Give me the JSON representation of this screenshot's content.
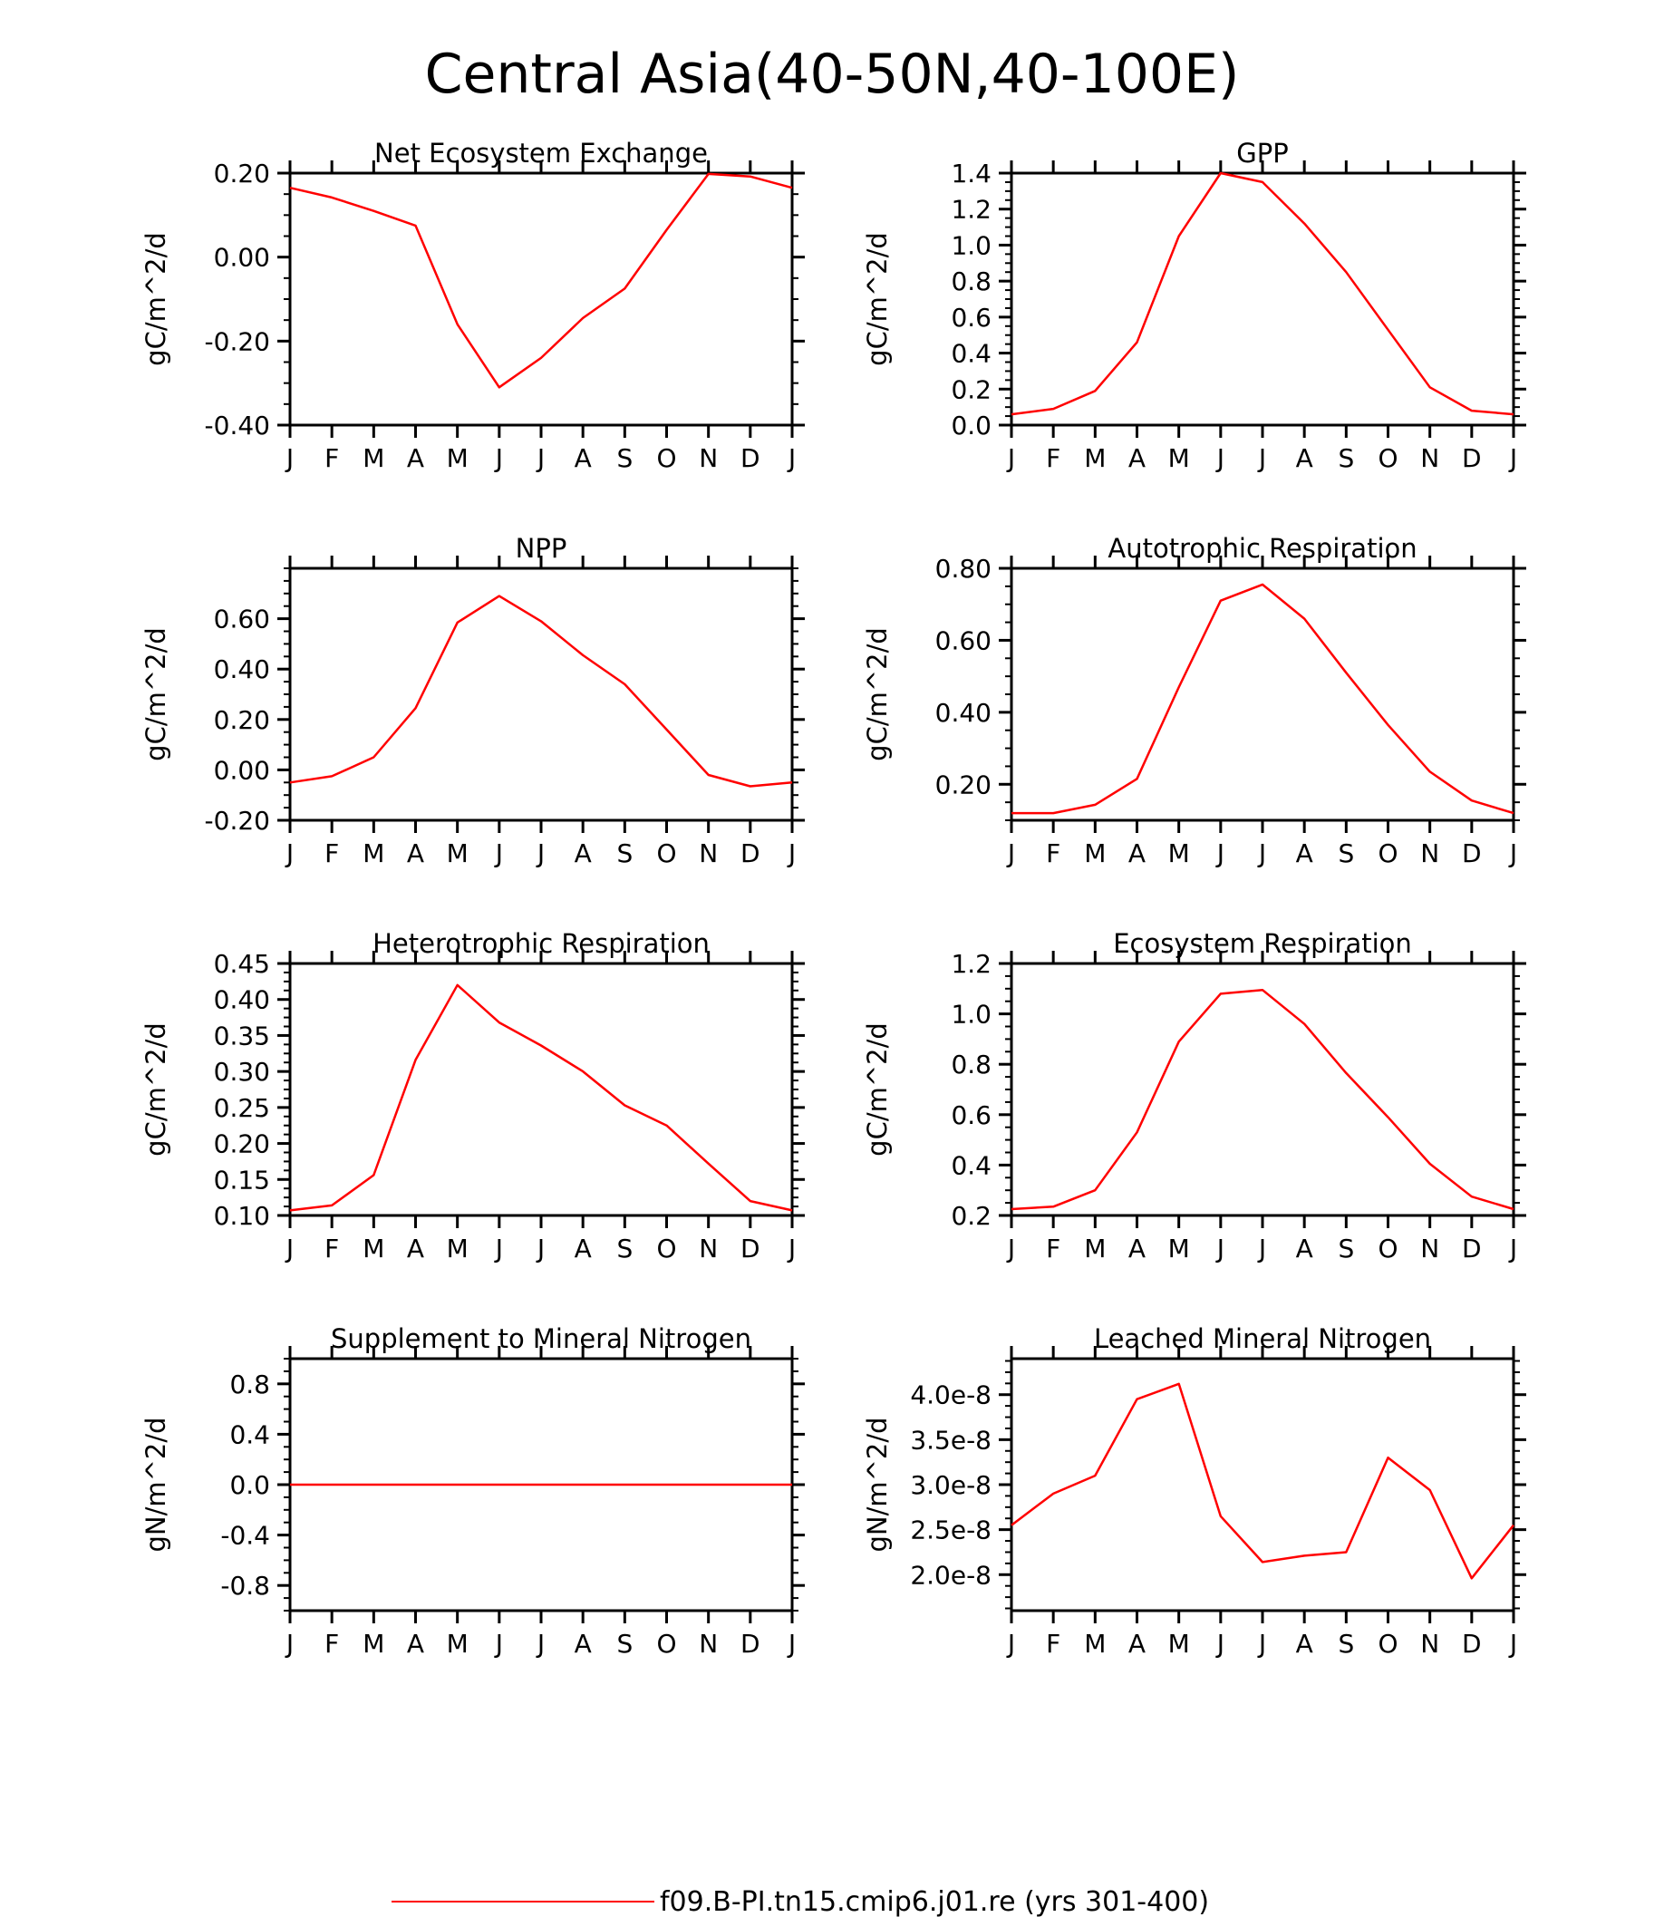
{
  "figure": {
    "title": "Central Asia(40-50N,40-100E)",
    "legend": {
      "label": "f09.B-PI.tn15.cmip6.j01.re (yrs 301-400)",
      "color": "#ff0000",
      "placement": "bottom-center"
    },
    "line_color": "#ff0000"
  },
  "chart_data": [
    {
      "type": "line",
      "title": "Net Ecosystem Exchange",
      "ylabel": "gC/m^2/d",
      "x": [
        "J",
        "F",
        "M",
        "A",
        "M",
        "J",
        "J",
        "A",
        "S",
        "O",
        "N",
        "D",
        "J"
      ],
      "ylim": [
        -0.4,
        0.2
      ],
      "yticks": [
        -0.4,
        -0.2,
        0.0,
        0.2
      ],
      "ytick_labels": [
        "-0.40",
        "-0.20",
        "0.00",
        "0.20"
      ],
      "series": [
        {
          "values": [
            0.165,
            0.142,
            0.11,
            0.075,
            -0.16,
            -0.31,
            -0.24,
            -0.145,
            -0.075,
            0.065,
            0.198,
            0.192,
            0.165
          ]
        }
      ]
    },
    {
      "type": "line",
      "title": "GPP",
      "ylabel": "gC/m^2/d",
      "x": [
        "J",
        "F",
        "M",
        "A",
        "M",
        "J",
        "J",
        "A",
        "S",
        "O",
        "N",
        "D",
        "J"
      ],
      "ylim": [
        0.0,
        1.4
      ],
      "yticks": [
        0.0,
        0.2,
        0.4,
        0.6,
        0.8,
        1.0,
        1.2,
        1.4
      ],
      "ytick_labels": [
        "0.0",
        "0.2",
        "0.4",
        "0.6",
        "0.8",
        "1.0",
        "1.2",
        "1.4"
      ],
      "series": [
        {
          "values": [
            0.06,
            0.09,
            0.19,
            0.46,
            1.05,
            1.4,
            1.35,
            1.12,
            0.85,
            0.53,
            0.21,
            0.08,
            0.06
          ]
        }
      ]
    },
    {
      "type": "line",
      "title": "NPP",
      "ylabel": "gC/m^2/d",
      "x": [
        "J",
        "F",
        "M",
        "A",
        "M",
        "J",
        "J",
        "A",
        "S",
        "O",
        "N",
        "D",
        "J"
      ],
      "ylim": [
        -0.2,
        0.8
      ],
      "yticks": [
        -0.2,
        0.0,
        0.2,
        0.4,
        0.6
      ],
      "ytick_labels": [
        "-0.20",
        "0.00",
        "0.20",
        "0.40",
        "0.60"
      ],
      "series": [
        {
          "values": [
            -0.05,
            -0.025,
            0.05,
            0.245,
            0.585,
            0.69,
            0.59,
            0.455,
            0.34,
            0.16,
            -0.02,
            -0.065,
            -0.05
          ]
        }
      ]
    },
    {
      "type": "line",
      "title": "Autotrophic Respiration",
      "ylabel": "gC/m^2/d",
      "x": [
        "J",
        "F",
        "M",
        "A",
        "M",
        "J",
        "J",
        "A",
        "S",
        "O",
        "N",
        "D",
        "J"
      ],
      "ylim": [
        0.1,
        0.8
      ],
      "yticks": [
        0.2,
        0.4,
        0.6,
        0.8
      ],
      "ytick_labels": [
        "0.20",
        "0.40",
        "0.60",
        "0.80"
      ],
      "series": [
        {
          "values": [
            0.12,
            0.12,
            0.143,
            0.215,
            0.47,
            0.71,
            0.755,
            0.66,
            0.51,
            0.365,
            0.235,
            0.155,
            0.12
          ]
        }
      ]
    },
    {
      "type": "line",
      "title": "Heterotrophic Respiration",
      "ylabel": "gC/m^2/d",
      "x": [
        "J",
        "F",
        "M",
        "A",
        "M",
        "J",
        "J",
        "A",
        "S",
        "O",
        "N",
        "D",
        "J"
      ],
      "ylim": [
        0.1,
        0.45
      ],
      "yticks": [
        0.1,
        0.15,
        0.2,
        0.25,
        0.3,
        0.35,
        0.4,
        0.45
      ],
      "ytick_labels": [
        "0.10",
        "0.15",
        "0.20",
        "0.25",
        "0.30",
        "0.35",
        "0.40",
        "0.45"
      ],
      "series": [
        {
          "values": [
            0.107,
            0.114,
            0.156,
            0.316,
            0.42,
            0.368,
            0.336,
            0.3,
            0.253,
            0.225,
            0.172,
            0.12,
            0.107
          ]
        }
      ]
    },
    {
      "type": "line",
      "title": "Ecosystem Respiration",
      "ylabel": "gC/m^2/d",
      "x": [
        "J",
        "F",
        "M",
        "A",
        "M",
        "J",
        "J",
        "A",
        "S",
        "O",
        "N",
        "D",
        "J"
      ],
      "ylim": [
        0.2,
        1.2
      ],
      "yticks": [
        0.2,
        0.4,
        0.6,
        0.8,
        1.0,
        1.2
      ],
      "ytick_labels": [
        "0.2",
        "0.4",
        "0.6",
        "0.8",
        "1.0",
        "1.2"
      ],
      "series": [
        {
          "values": [
            0.225,
            0.235,
            0.3,
            0.53,
            0.89,
            1.08,
            1.095,
            0.96,
            0.765,
            0.59,
            0.405,
            0.275,
            0.225
          ]
        }
      ]
    },
    {
      "type": "line",
      "title": "Supplement to Mineral Nitrogen",
      "ylabel": "gN/m^2/d",
      "x": [
        "J",
        "F",
        "M",
        "A",
        "M",
        "J",
        "J",
        "A",
        "S",
        "O",
        "N",
        "D",
        "J"
      ],
      "ylim": [
        -1.0,
        1.0
      ],
      "yticks": [
        -0.8,
        -0.4,
        0.0,
        0.4,
        0.8
      ],
      "ytick_labels": [
        "-0.8",
        "-0.4",
        "0.0",
        "0.4",
        "0.8"
      ],
      "series": [
        {
          "values": [
            0,
            0,
            0,
            0,
            0,
            0,
            0,
            0,
            0,
            0,
            0,
            0,
            0
          ]
        }
      ]
    },
    {
      "type": "line",
      "title": "Leached Mineral Nitrogen",
      "ylabel": "gN/m^2/d",
      "x": [
        "J",
        "F",
        "M",
        "A",
        "M",
        "J",
        "J",
        "A",
        "S",
        "O",
        "N",
        "D",
        "J"
      ],
      "ylim": [
        1.6e-08,
        4.4e-08
      ],
      "yticks": [
        2e-08,
        2.5e-08,
        3e-08,
        3.5e-08,
        4e-08
      ],
      "ytick_labels": [
        "2.0e-8",
        "2.5e-8",
        "3.0e-8",
        "3.5e-8",
        "4.0e-8"
      ],
      "series": [
        {
          "values": [
            2.55e-08,
            2.9e-08,
            3.1e-08,
            3.95e-08,
            4.12e-08,
            2.65e-08,
            2.14e-08,
            2.21e-08,
            2.25e-08,
            3.3e-08,
            2.94e-08,
            1.96e-08,
            2.55e-08
          ]
        }
      ]
    }
  ]
}
